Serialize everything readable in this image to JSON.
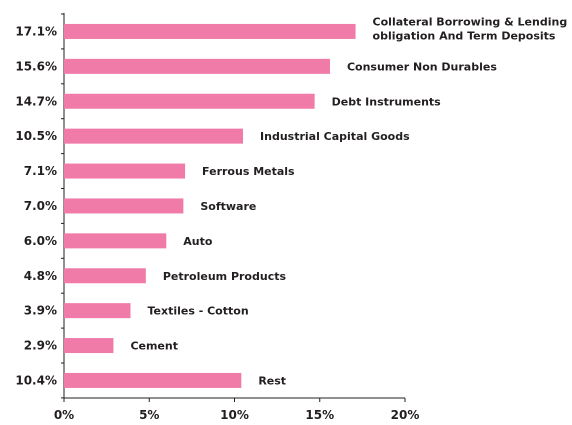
{
  "chart_data": {
    "type": "bar",
    "orientation": "horizontal",
    "categories": [
      "Collateral Borrowing & Lending obligation And Term Deposits",
      "Consumer Non Durables",
      "Debt Instruments",
      "Industrial Capital Goods",
      "Ferrous Metals",
      "Software",
      "Auto",
      "Petroleum Products",
      "Textiles - Cotton",
      "Cement",
      "Rest"
    ],
    "label_lines": [
      [
        "Collateral Borrowing & Lending",
        "obligation And Term Deposits"
      ],
      [
        "Consumer Non Durables"
      ],
      [
        "Debt Instruments"
      ],
      [
        "Industrial Capital Goods"
      ],
      [
        "Ferrous Metals"
      ],
      [
        "Software"
      ],
      [
        "Auto"
      ],
      [
        "Petroleum Products"
      ],
      [
        "Textiles - Cotton"
      ],
      [
        "Cement"
      ],
      [
        "Rest"
      ]
    ],
    "values": [
      17.1,
      15.6,
      14.7,
      10.5,
      7.1,
      7.0,
      6.0,
      4.8,
      3.9,
      2.9,
      10.4
    ],
    "value_labels": [
      "17.1%",
      "15.6%",
      "14.7%",
      "10.5%",
      "7.1%",
      "7.0%",
      "6.0%",
      "4.8%",
      "3.9%",
      "2.9%",
      "10.4%"
    ],
    "xlim": [
      0,
      20
    ],
    "xticks": [
      0,
      5,
      10,
      15,
      20
    ],
    "xtick_labels": [
      "0%",
      "5%",
      "10%",
      "15%",
      "20%"
    ],
    "bar_color": "#f07ba9",
    "grid": false,
    "legend": "none"
  }
}
